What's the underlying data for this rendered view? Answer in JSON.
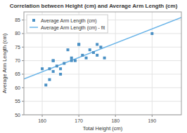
{
  "chart_data": {
    "type": "scatter",
    "title": "Correlation between Height (cm) and Average Arm Length (cm)",
    "x_label": "Total Height (cm)",
    "y_label": "Average Arm Length (cm)",
    "series": [
      {
        "name": "Average Arm Length (cm)",
        "type": "scatter",
        "color": "#4a90c4",
        "marker": "square",
        "x": [
          160,
          161,
          162,
          162,
          163,
          163,
          163,
          164,
          165,
          165,
          166,
          167,
          168,
          168,
          169,
          170,
          170,
          171,
          172,
          173,
          174,
          175,
          175,
          176,
          177,
          190
        ],
        "values": [
          67,
          61,
          67,
          63,
          70,
          70,
          66,
          68,
          67,
          65,
          69,
          74,
          71,
          70,
          70,
          76,
          76,
          72,
          71,
          74,
          73,
          76,
          72,
          75,
          71,
          80
        ]
      },
      {
        "name": "Average Arm Length (cm) - fit",
        "type": "line",
        "color": "#6ab4e8",
        "line_style": "solid",
        "x": [
          155,
          198
        ],
        "values": [
          63.251,
          85.9457
        ]
      }
    ],
    "xlim": [
      155,
      198
    ],
    "ylim": [
      50,
      88
    ],
    "xticks": [
      160,
      170,
      180,
      190
    ],
    "yticks": [
      50,
      55,
      60,
      65,
      70,
      75,
      80,
      85
    ],
    "grid": true,
    "legend": "upper left"
  }
}
